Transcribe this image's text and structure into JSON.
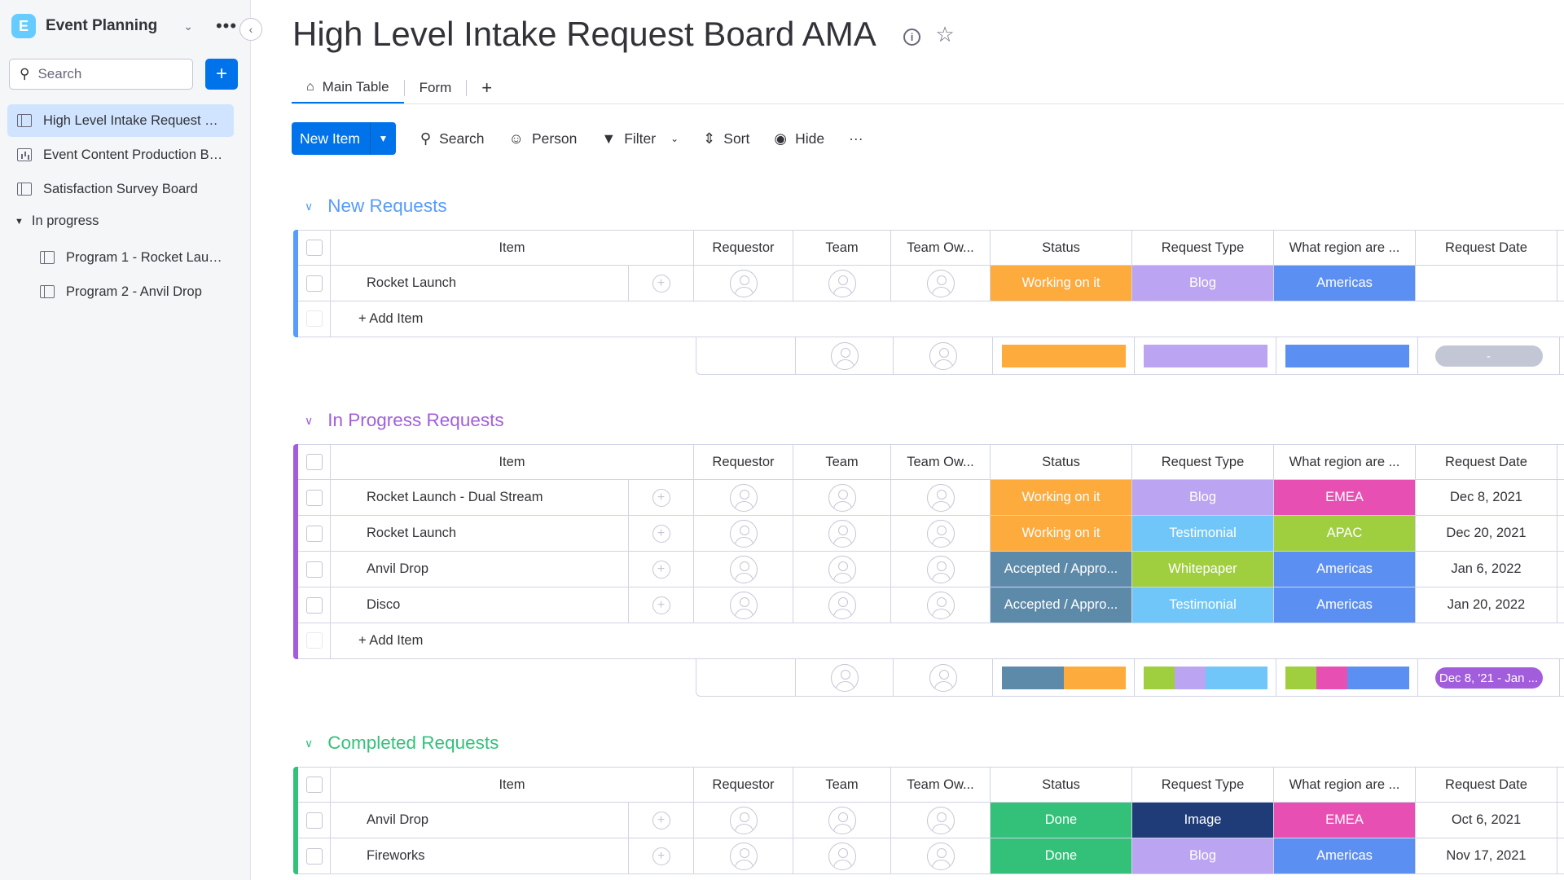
{
  "workspace": {
    "initial": "E",
    "name": "Event Planning"
  },
  "sidebar": {
    "search_placeholder": "Search",
    "items": [
      {
        "label": "High Level Intake Request Board AMA",
        "icon": "board-icon"
      },
      {
        "label": "Event Content Production Board",
        "icon": "dashboard-icon"
      },
      {
        "label": "Satisfaction Survey Board",
        "icon": "board-icon"
      }
    ],
    "folder": {
      "label": "In progress",
      "items": [
        {
          "label": "Program 1 - Rocket Launch"
        },
        {
          "label": "Program 2 - Anvil Drop"
        }
      ]
    }
  },
  "header": {
    "title": "High Level Intake Request Board AMA",
    "tabs": [
      {
        "label": "Main Table"
      },
      {
        "label": "Form"
      }
    ],
    "tab_add": "+"
  },
  "toolbar": {
    "new_item": "New Item",
    "search": "Search",
    "person": "Person",
    "filter": "Filter",
    "sort": "Sort",
    "hide": "Hide",
    "more": "···"
  },
  "columns": {
    "item": "Item",
    "requestor": "Requestor",
    "team": "Team",
    "team_owner": "Team Ow...",
    "status": "Status",
    "request_type": "Request Type",
    "region": "What region are ...",
    "request_date": "Request Date"
  },
  "add_item_label": "+ Add Item",
  "colors": {
    "working_on_it": "#fdab3d",
    "accepted": "#5e8aaa",
    "done": "#33c17a",
    "blog": "#bba4f2",
    "testimonial": "#70c6f9",
    "whitepaper": "#9fcf3e",
    "image": "#1f3c78",
    "americas": "#5b8ff2",
    "emea": "#e84fb2",
    "apac": "#9fcf3e"
  },
  "groups": [
    {
      "title": "New Requests",
      "color": "#579bfc",
      "rows": [
        {
          "item": "Rocket Launch",
          "status": "Working on it",
          "status_color": "#fdab3d",
          "type": "Blog",
          "type_color": "#bba4f2",
          "region": "Americas",
          "region_color": "#5b8ff2",
          "date": ""
        }
      ],
      "summary": {
        "status_bar": [
          {
            "color": "#fdab3d",
            "fraction": 1
          }
        ],
        "type_bar": [
          {
            "color": "#bba4f2",
            "fraction": 1
          }
        ],
        "region_bar": [
          {
            "color": "#5b8ff2",
            "fraction": 1
          }
        ],
        "date": "-",
        "date_color": "#c3c6d4"
      }
    },
    {
      "title": "In Progress Requests",
      "color": "#a25ddc",
      "rows": [
        {
          "item": "Rocket Launch - Dual Stream",
          "status": "Working on it",
          "status_color": "#fdab3d",
          "type": "Blog",
          "type_color": "#bba4f2",
          "region": "EMEA",
          "region_color": "#e84fb2",
          "date": "Dec 8, 2021"
        },
        {
          "item": "Rocket Launch",
          "status": "Working on it",
          "status_color": "#fdab3d",
          "type": "Testimonial",
          "type_color": "#70c6f9",
          "region": "APAC",
          "region_color": "#9fcf3e",
          "date": "Dec 20, 2021"
        },
        {
          "item": "Anvil Drop",
          "status": "Accepted / Appro...",
          "status_color": "#5e8aaa",
          "type": "Whitepaper",
          "type_color": "#9fcf3e",
          "region": "Americas",
          "region_color": "#5b8ff2",
          "date": "Jan 6, 2022"
        },
        {
          "item": "Disco",
          "status": "Accepted / Appro...",
          "status_color": "#5e8aaa",
          "type": "Testimonial",
          "type_color": "#70c6f9",
          "region": "Americas",
          "region_color": "#5b8ff2",
          "date": "Jan 20, 2022"
        }
      ],
      "summary": {
        "status_bar": [
          {
            "color": "#5e8aaa",
            "fraction": 0.5
          },
          {
            "color": "#fdab3d",
            "fraction": 0.5
          }
        ],
        "type_bar": [
          {
            "color": "#9fcf3e",
            "fraction": 0.25
          },
          {
            "color": "#bba4f2",
            "fraction": 0.25
          },
          {
            "color": "#70c6f9",
            "fraction": 0.5
          }
        ],
        "region_bar": [
          {
            "color": "#9fcf3e",
            "fraction": 0.25
          },
          {
            "color": "#e84fb2",
            "fraction": 0.25
          },
          {
            "color": "#5b8ff2",
            "fraction": 0.5
          }
        ],
        "date": "Dec 8, '21 - Jan ...",
        "date_color": "#a25ddc"
      }
    },
    {
      "title": "Completed Requests",
      "color": "#33c17a",
      "rows": [
        {
          "item": "Anvil Drop",
          "status": "Done",
          "status_color": "#33c17a",
          "type": "Image",
          "type_color": "#1f3c78",
          "region": "EMEA",
          "region_color": "#e84fb2",
          "date": "Oct 6, 2021"
        },
        {
          "item": "Fireworks",
          "status": "Done",
          "status_color": "#33c17a",
          "type": "Blog",
          "type_color": "#bba4f2",
          "region": "Americas",
          "region_color": "#5b8ff2",
          "date": "Nov 17, 2021"
        }
      ]
    }
  ]
}
